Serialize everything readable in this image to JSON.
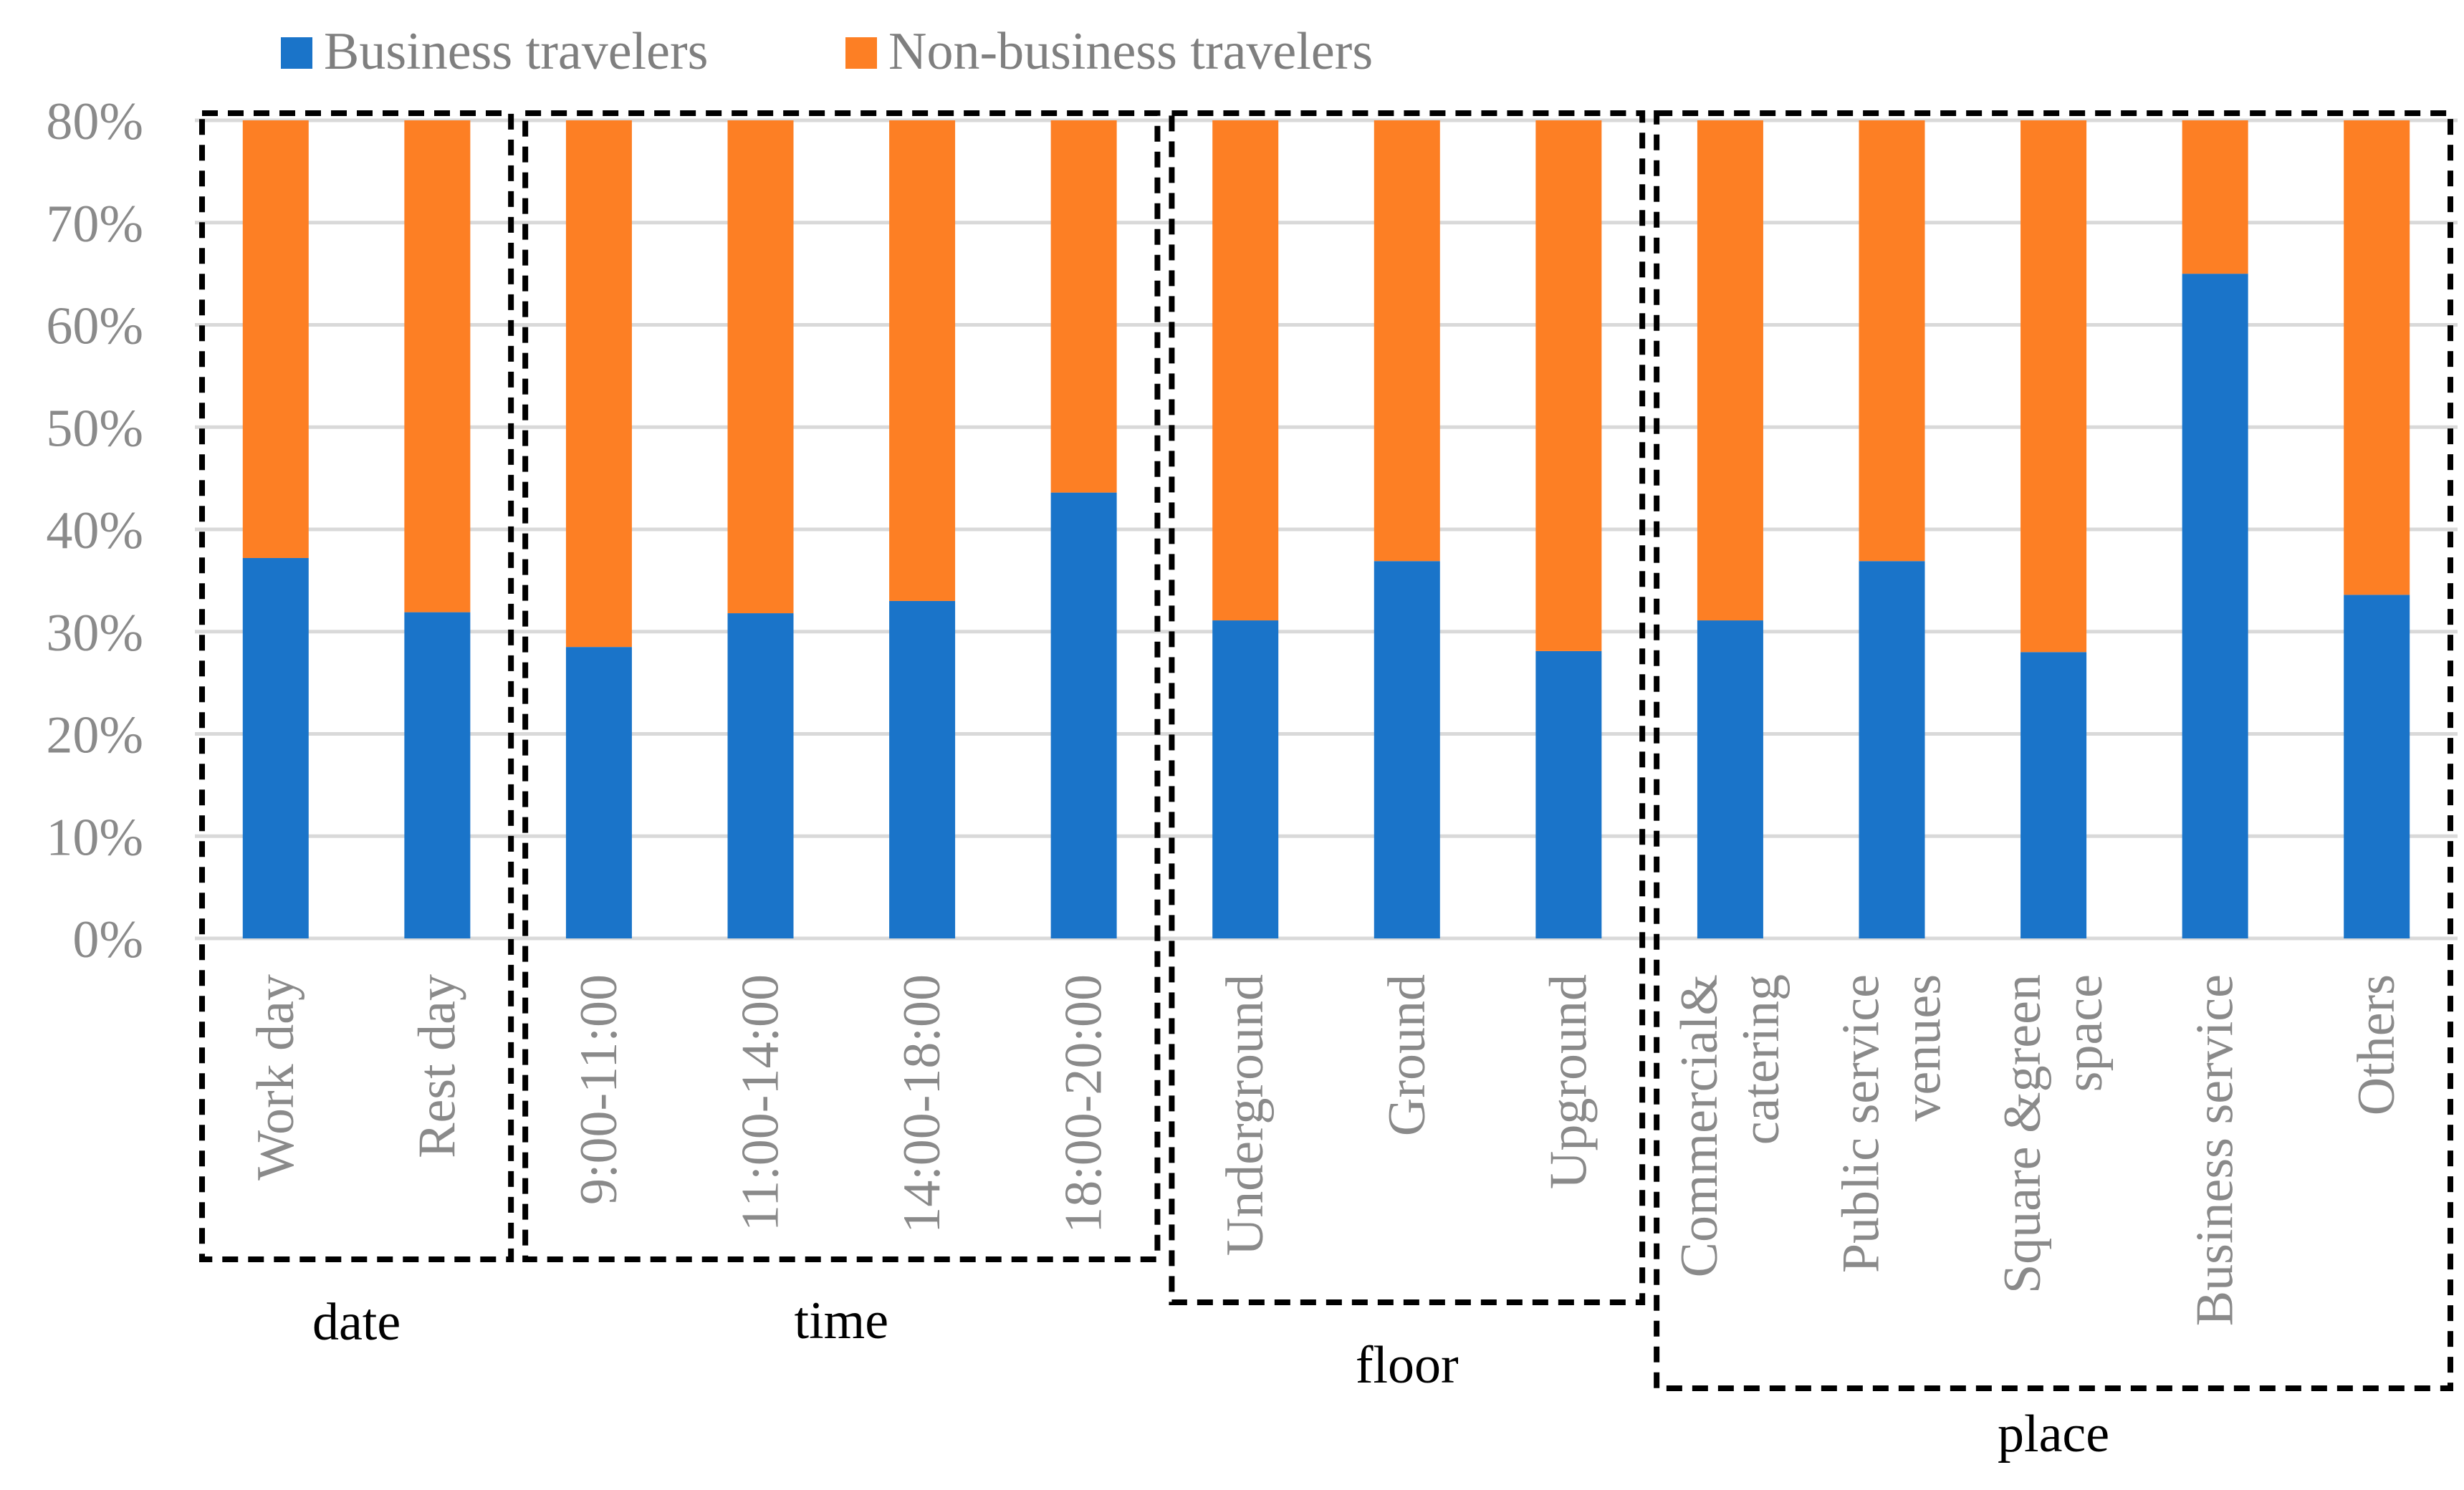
{
  "chart_data": {
    "type": "bar",
    "stacked": true,
    "title": "",
    "xlabel": "",
    "ylabel": "",
    "ylim": [
      0,
      80
    ],
    "yticks": [
      "0%",
      "10%",
      "20%",
      "30%",
      "40%",
      "50%",
      "60%",
      "70%",
      "80%"
    ],
    "legend_position": "top-left",
    "colors": {
      "business": "#1a74c9",
      "non_business": "#fd7f24"
    },
    "categories": [
      [
        "Work day"
      ],
      [
        "Rest day"
      ],
      [
        "9:00-11:00"
      ],
      [
        "11:00-14:00"
      ],
      [
        "14:00-18:00"
      ],
      [
        "18:00-20:00"
      ],
      [
        "Underground"
      ],
      [
        "Ground"
      ],
      [
        "Upground"
      ],
      [
        "Commercial&",
        "catering"
      ],
      [
        "Public service",
        "venues"
      ],
      [
        "Square &green",
        "space"
      ],
      [
        "Business service"
      ],
      [
        "Others"
      ]
    ],
    "series": [
      {
        "name": "Business travelers",
        "values": [
          37.2,
          31.9,
          28.5,
          31.8,
          33.0,
          43.6,
          31.1,
          36.9,
          28.1,
          31.1,
          36.9,
          28.0,
          65.0,
          33.6
        ]
      },
      {
        "name": "Non-business travelers",
        "values": [
          42.8,
          48.1,
          51.5,
          48.2,
          47.0,
          36.4,
          48.9,
          43.1,
          51.9,
          48.9,
          43.1,
          52.0,
          15.0,
          46.4
        ]
      }
    ],
    "groups": [
      {
        "label": "date",
        "start": 0,
        "end": 1
      },
      {
        "label": "time",
        "start": 2,
        "end": 5
      },
      {
        "label": "floor",
        "start": 6,
        "end": 8
      },
      {
        "label": "place",
        "start": 9,
        "end": 13
      }
    ]
  }
}
